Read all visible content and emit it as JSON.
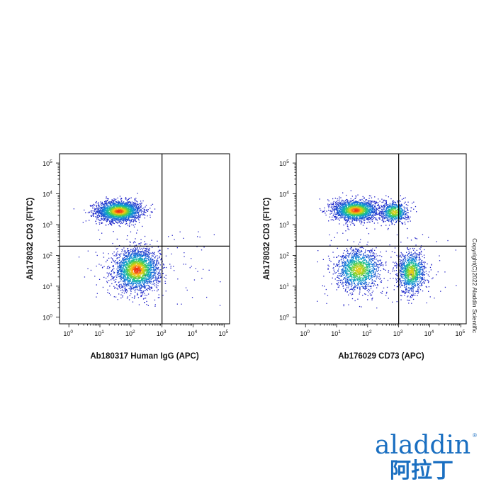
{
  "chart_data": [
    {
      "type": "scatter",
      "style": "flow-cytometry density dot plot",
      "xlabel": "Ab180317 Human IgG (APC)",
      "ylabel": "Ab178032 CD3 (FITC)",
      "x_scale": "log",
      "y_scale": "log",
      "xlim": [
        0.5,
        150000
      ],
      "ylim": [
        0.6,
        200000
      ],
      "x_ticks": [
        "10^0",
        "10^1",
        "10^2",
        "10^3",
        "10^4",
        "10^5"
      ],
      "y_ticks": [
        "10^0",
        "10^1",
        "10^2",
        "10^3",
        "10^4",
        "10^5"
      ],
      "quadrant_gate": {
        "x": 1000,
        "y": 200
      },
      "populations": [
        {
          "cx": 40,
          "cy": 2800,
          "count": 2200
        },
        {
          "cx": 150,
          "cy": 35,
          "count": 2400
        }
      ]
    },
    {
      "type": "scatter",
      "style": "flow-cytometry density dot plot",
      "xlabel": "Ab176029 CD73 (APC)",
      "ylabel": "Ab178032 CD3 (FITC)",
      "x_scale": "log",
      "y_scale": "log",
      "xlim": [
        0.5,
        150000
      ],
      "ylim": [
        0.6,
        200000
      ],
      "x_ticks": [
        "10^0",
        "10^1",
        "10^2",
        "10^3",
        "10^4",
        "10^5"
      ],
      "y_ticks": [
        "10^0",
        "10^1",
        "10^2",
        "10^3",
        "10^4",
        "10^5"
      ],
      "quadrant_gate": {
        "x": 1000,
        "y": 200
      },
      "populations": [
        {
          "cx": 40,
          "cy": 3000,
          "count": 1900
        },
        {
          "cx": 700,
          "cy": 2600,
          "count": 700
        },
        {
          "cx": 50,
          "cy": 35,
          "count": 1400
        },
        {
          "cx": 2500,
          "cy": 30,
          "count": 1100
        }
      ]
    }
  ],
  "copyright": "Copyright(C)2022 Aladdin Scientific",
  "brand": {
    "latin": "aladdin",
    "chinese": "阿拉丁",
    "registered": "®",
    "color": "#1a6fc1"
  }
}
